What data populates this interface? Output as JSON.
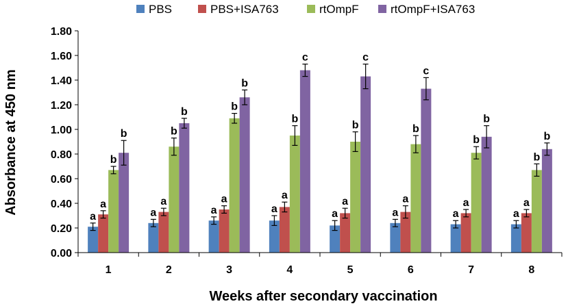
{
  "chart_data": {
    "type": "bar",
    "title": "",
    "xlabel": "Weeks after secondary vaccination",
    "ylabel": "Absorbance at 450 nm",
    "ylim": [
      0,
      1.8
    ],
    "ytick_step": 0.2,
    "ytick_labels": [
      "0.00",
      "0.20",
      "0.40",
      "0.60",
      "0.80",
      "1.00",
      "1.20",
      "1.40",
      "1.60",
      "1.80"
    ],
    "categories": [
      "1",
      "2",
      "3",
      "4",
      "5",
      "6",
      "7",
      "8"
    ],
    "legend_position": "top",
    "grid": false,
    "error_bars": true,
    "series": [
      {
        "name": "PBS",
        "color": "#4F81BD",
        "values": [
          0.21,
          0.24,
          0.26,
          0.26,
          0.22,
          0.24,
          0.23,
          0.23
        ],
        "errors": [
          0.03,
          0.03,
          0.03,
          0.04,
          0.04,
          0.03,
          0.03,
          0.03
        ],
        "labels": [
          "a",
          "a",
          "a",
          "a",
          "a",
          "a",
          "a",
          "a"
        ]
      },
      {
        "name": "PBS+ISA763",
        "color": "#C0504D",
        "values": [
          0.31,
          0.33,
          0.35,
          0.37,
          0.32,
          0.33,
          0.32,
          0.32
        ],
        "errors": [
          0.03,
          0.03,
          0.03,
          0.04,
          0.04,
          0.05,
          0.03,
          0.03
        ],
        "labels": [
          "a",
          "a",
          "a",
          "a",
          "a",
          "a",
          "a",
          "a"
        ]
      },
      {
        "name": "rtOmpF",
        "color": "#9BBB59",
        "values": [
          0.67,
          0.86,
          1.09,
          0.95,
          0.9,
          0.88,
          0.81,
          0.67
        ],
        "errors": [
          0.03,
          0.07,
          0.04,
          0.08,
          0.08,
          0.07,
          0.05,
          0.05
        ],
        "labels": [
          "b",
          "b",
          "b",
          "b",
          "b",
          "b",
          "b",
          "b"
        ]
      },
      {
        "name": "rtOmpF+ISA763",
        "color": "#8064A2",
        "values": [
          0.81,
          1.05,
          1.26,
          1.48,
          1.43,
          1.33,
          0.94,
          0.84
        ],
        "errors": [
          0.1,
          0.04,
          0.06,
          0.05,
          0.1,
          0.09,
          0.09,
          0.05
        ],
        "labels": [
          "b",
          "b",
          "b",
          "c",
          "c",
          "c",
          "b",
          "b"
        ]
      }
    ]
  }
}
